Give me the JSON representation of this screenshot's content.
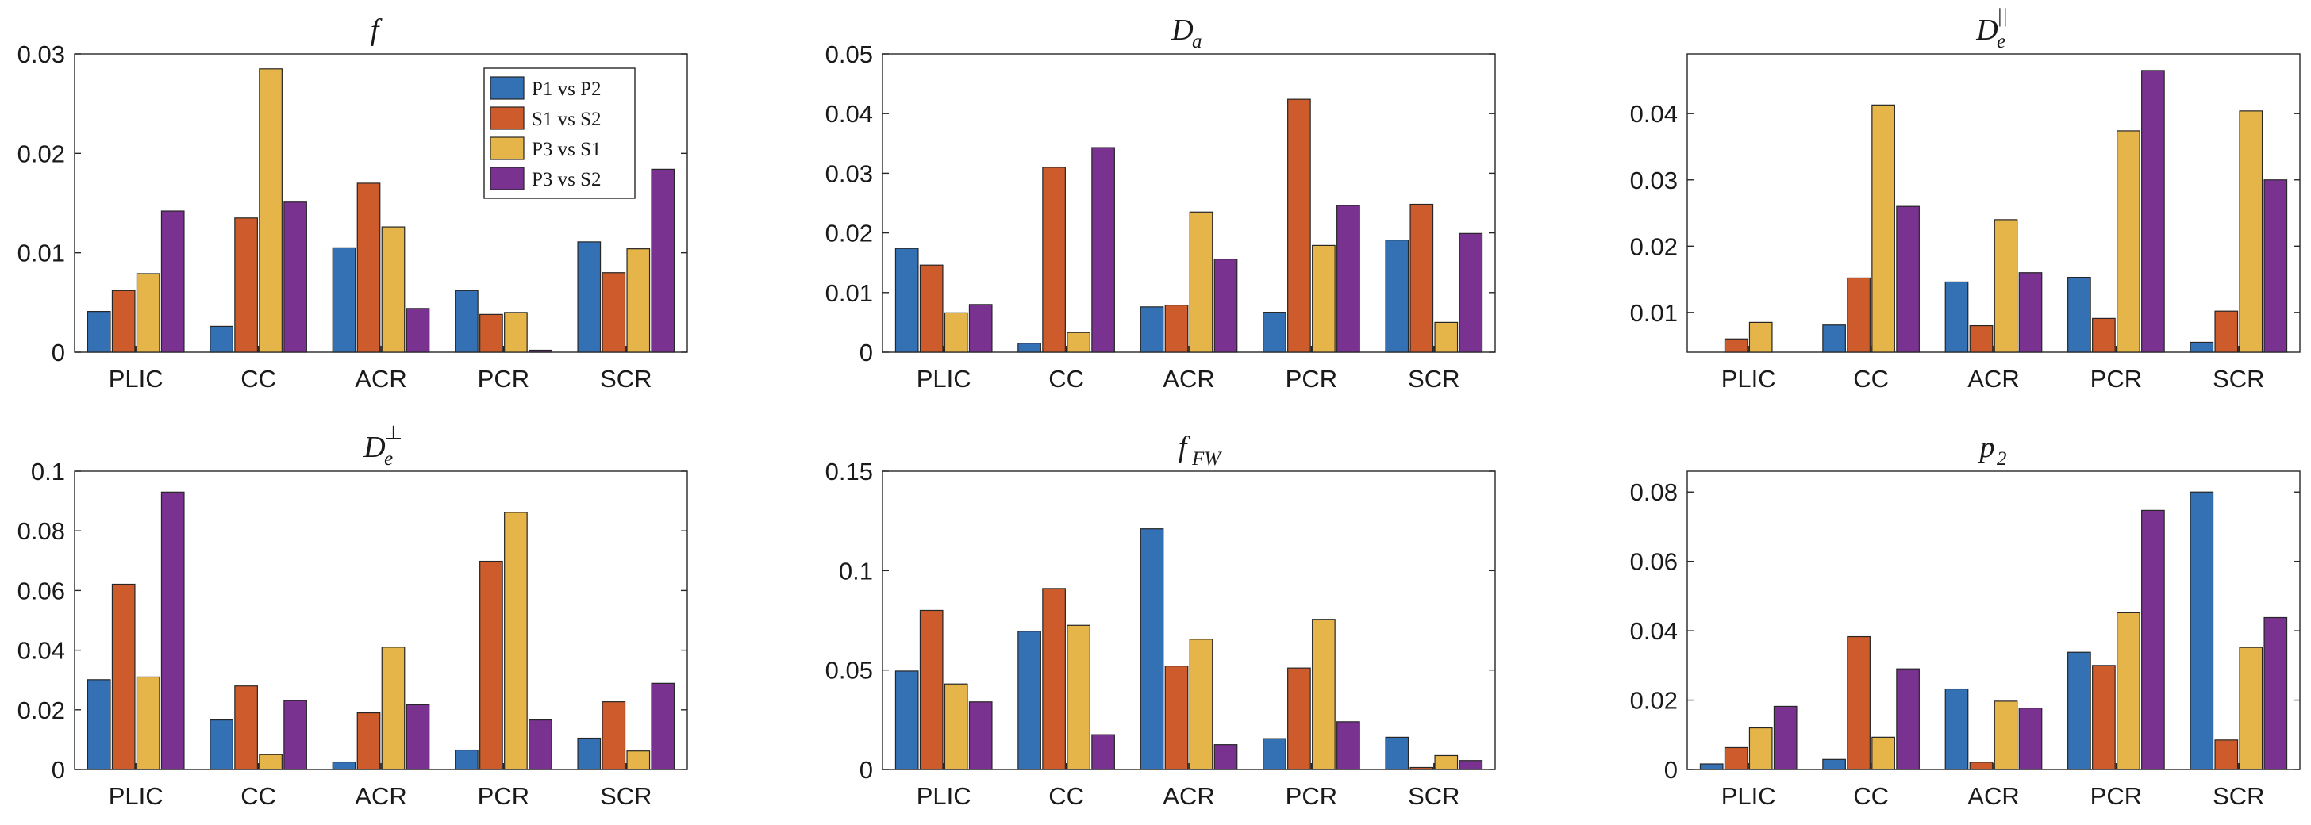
{
  "chart_data": [
    {
      "type": "bar",
      "title": "f",
      "categories": [
        "PLIC",
        "CC",
        "ACR",
        "PCR",
        "SCR"
      ],
      "series": [
        {
          "name": "P1 vs P2",
          "values": [
            0.0041,
            0.0026,
            0.0105,
            0.0062,
            0.0111
          ]
        },
        {
          "name": "S1 vs S2",
          "values": [
            0.0062,
            0.0135,
            0.017,
            0.0038,
            0.008
          ]
        },
        {
          "name": "P3 vs S1",
          "values": [
            0.0079,
            0.0285,
            0.0126,
            0.004,
            0.0104
          ]
        },
        {
          "name": "P3 vs S2",
          "values": [
            0.0142,
            0.0151,
            0.0044,
            0.0002,
            0.0184
          ]
        }
      ],
      "ylim": [
        0,
        0.03
      ],
      "yticks": [
        "0",
        "0.01",
        "0.02",
        "0.03"
      ],
      "legend": "top-right"
    },
    {
      "type": "bar",
      "title": "D",
      "title_sub": "a",
      "categories": [
        "PLIC",
        "CC",
        "ACR",
        "PCR",
        "SCR"
      ],
      "series": [
        {
          "name": "P1 vs P2",
          "values": [
            0.0174,
            0.0015,
            0.0076,
            0.0067,
            0.0188
          ]
        },
        {
          "name": "S1 vs S2",
          "values": [
            0.0146,
            0.031,
            0.0079,
            0.0424,
            0.0248
          ]
        },
        {
          "name": "P3 vs S1",
          "values": [
            0.0066,
            0.0033,
            0.0235,
            0.0179,
            0.005
          ]
        },
        {
          "name": "P3 vs S2",
          "values": [
            0.008,
            0.0343,
            0.0156,
            0.0246,
            0.0199
          ]
        }
      ],
      "ylim": [
        0,
        0.05
      ],
      "yticks": [
        "0",
        "0.01",
        "0.02",
        "0.03",
        "0.04",
        "0.05"
      ]
    },
    {
      "type": "bar",
      "title": "D",
      "title_sub": "e",
      "title_sup": "||",
      "categories": [
        "PLIC",
        "CC",
        "ACR",
        "PCR",
        "SCR"
      ],
      "series": [
        {
          "name": "P1 vs P2",
          "values": [
            0.003,
            0.0081,
            0.0146,
            0.0153,
            0.0055
          ]
        },
        {
          "name": "S1 vs S2",
          "values": [
            0.006,
            0.0152,
            0.008,
            0.0091,
            0.0102
          ]
        },
        {
          "name": "P3 vs S1",
          "values": [
            0.0085,
            0.0413,
            0.024,
            0.0374,
            0.0404
          ]
        },
        {
          "name": "P3 vs S2",
          "values": [
            0.003,
            0.026,
            0.016,
            0.0465,
            0.03
          ]
        }
      ],
      "ylim": [
        0.004,
        0.049
      ],
      "yticks": [
        "0.01",
        "0.02",
        "0.03",
        "0.04"
      ]
    },
    {
      "type": "bar",
      "title": "D",
      "title_sub": "e",
      "title_sup": "⊥",
      "categories": [
        "PLIC",
        "CC",
        "ACR",
        "PCR",
        "SCR"
      ],
      "series": [
        {
          "name": "P1 vs P2",
          "values": [
            0.0301,
            0.0166,
            0.0025,
            0.0065,
            0.0105
          ]
        },
        {
          "name": "S1 vs S2",
          "values": [
            0.0621,
            0.028,
            0.019,
            0.0698,
            0.0227
          ]
        },
        {
          "name": "P3 vs S1",
          "values": [
            0.031,
            0.005,
            0.041,
            0.0862,
            0.0062
          ]
        },
        {
          "name": "P3 vs S2",
          "values": [
            0.093,
            0.0231,
            0.0217,
            0.0166,
            0.0289
          ]
        }
      ],
      "ylim": [
        0,
        0.1
      ],
      "yticks": [
        "0",
        "0.02",
        "0.04",
        "0.06",
        "0.08",
        "0.1"
      ]
    },
    {
      "type": "bar",
      "title": "f",
      "title_sub": "FW",
      "categories": [
        "PLIC",
        "CC",
        "ACR",
        "PCR",
        "SCR"
      ],
      "series": [
        {
          "name": "P1 vs P2",
          "values": [
            0.0495,
            0.0695,
            0.121,
            0.0155,
            0.0162
          ]
        },
        {
          "name": "S1 vs S2",
          "values": [
            0.08,
            0.091,
            0.052,
            0.051,
            0.001
          ]
        },
        {
          "name": "P3 vs S1",
          "values": [
            0.043,
            0.0725,
            0.0655,
            0.0755,
            0.007
          ]
        },
        {
          "name": "P3 vs S2",
          "values": [
            0.034,
            0.0175,
            0.0125,
            0.024,
            0.0045
          ]
        }
      ],
      "ylim": [
        0,
        0.15
      ],
      "yticks": [
        "0",
        "0.05",
        "0.1",
        "0.15"
      ]
    },
    {
      "type": "bar",
      "title": "p",
      "title_sub": "2",
      "categories": [
        "PLIC",
        "CC",
        "ACR",
        "PCR",
        "SCR"
      ],
      "series": [
        {
          "name": "P1 vs P2",
          "values": [
            0.0016,
            0.0029,
            0.0232,
            0.0338,
            0.08
          ]
        },
        {
          "name": "S1 vs S2",
          "values": [
            0.0063,
            0.0383,
            0.0021,
            0.03,
            0.0085
          ]
        },
        {
          "name": "P3 vs S1",
          "values": [
            0.012,
            0.0093,
            0.0197,
            0.0452,
            0.0352
          ]
        },
        {
          "name": "P3 vs S2",
          "values": [
            0.0182,
            0.029,
            0.0177,
            0.0747,
            0.0438
          ]
        }
      ],
      "ylim": [
        0,
        0.086
      ],
      "yticks": [
        "0",
        "0.02",
        "0.04",
        "0.06",
        "0.08"
      ]
    }
  ],
  "colors": [
    "#3470b4",
    "#cd5b2c",
    "#e6b54a",
    "#7a3290"
  ]
}
